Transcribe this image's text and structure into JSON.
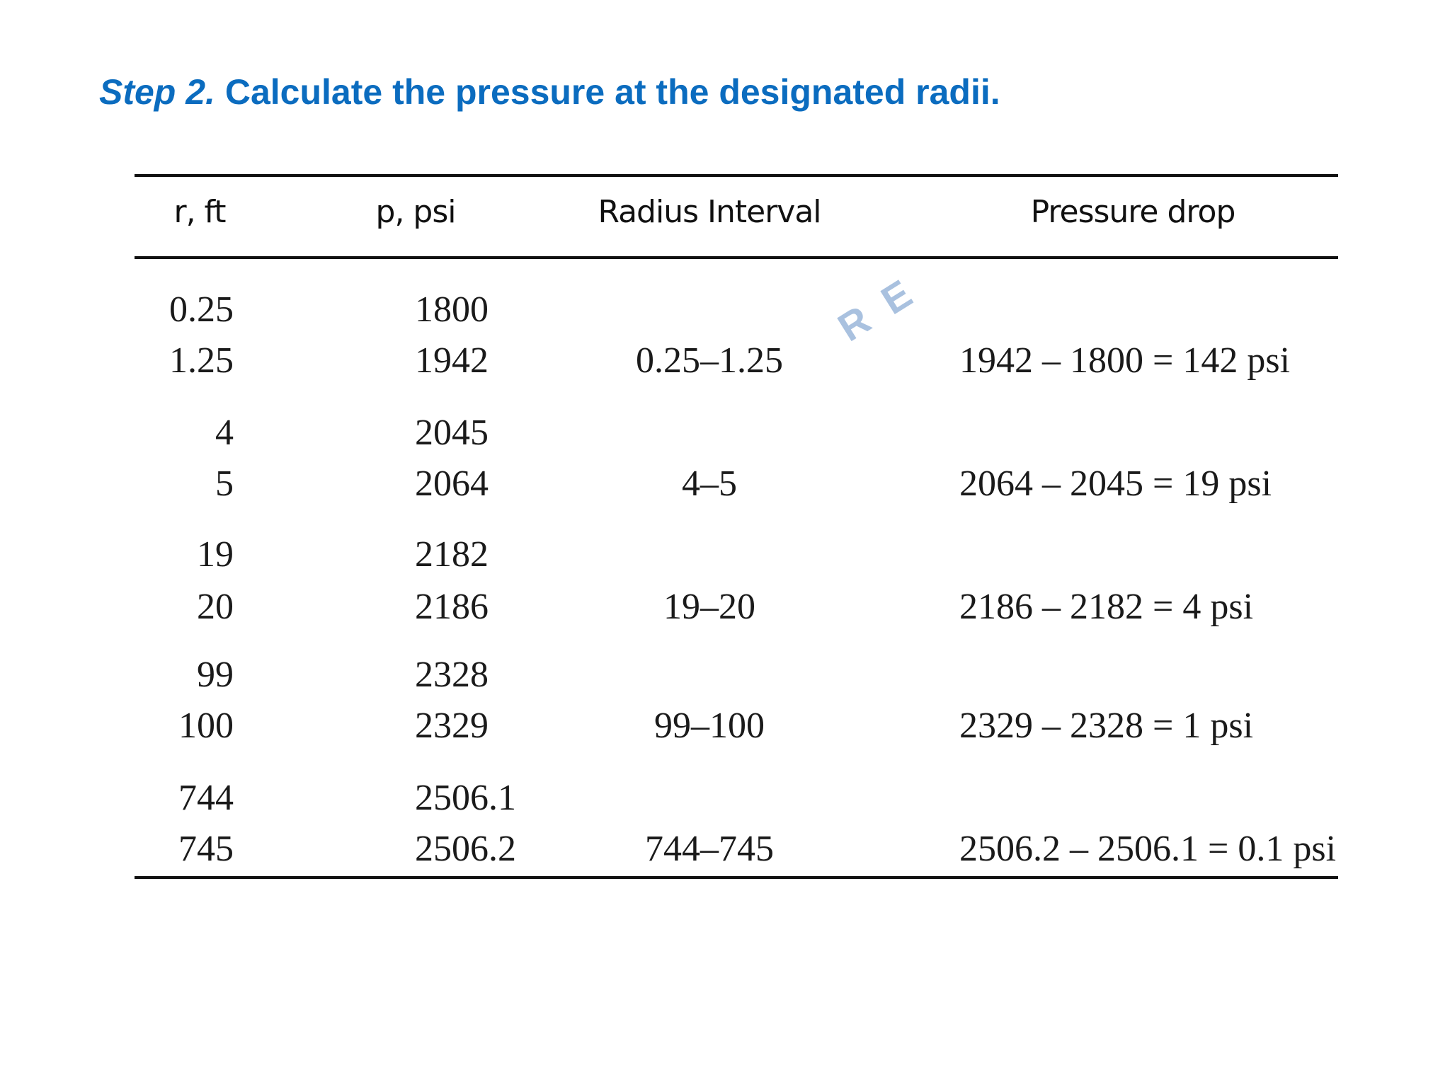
{
  "slide": {
    "title_step": "Step 2.",
    "title_text": "Calculate the pressure at the designated radii."
  },
  "table": {
    "headers": {
      "radius": "r, ft",
      "pressure": "p, psi",
      "interval": "Radius Interval",
      "drop": "Pressure drop"
    },
    "groups": [
      {
        "r1": "0.25",
        "p1": "1800",
        "r2": "1.25",
        "p2": "1942",
        "interval": "0.25–1.25",
        "drop": "1942 – 1800 = 142 psi"
      },
      {
        "r1": "4",
        "p1": "2045",
        "r2": "5",
        "p2": "2064",
        "interval": "4–5",
        "drop": "2064 – 2045 = 19 psi"
      },
      {
        "r1": "19",
        "p1": "2182",
        "r2": "20",
        "p2": "2186",
        "interval": "19–20",
        "drop": "2186 – 2182 = 4 psi"
      },
      {
        "r1": "99",
        "p1": "2328",
        "r2": "100",
        "p2": "2329",
        "interval": "99–100",
        "drop": "2329 – 2328 = 1 psi"
      },
      {
        "r1": "744",
        "p1": "2506.1",
        "r2": "745",
        "p2": "2506.2",
        "interval": "744–745",
        "drop": "2506.2 – 2506.1 = 0.1 psi"
      }
    ]
  },
  "watermark": "R E"
}
